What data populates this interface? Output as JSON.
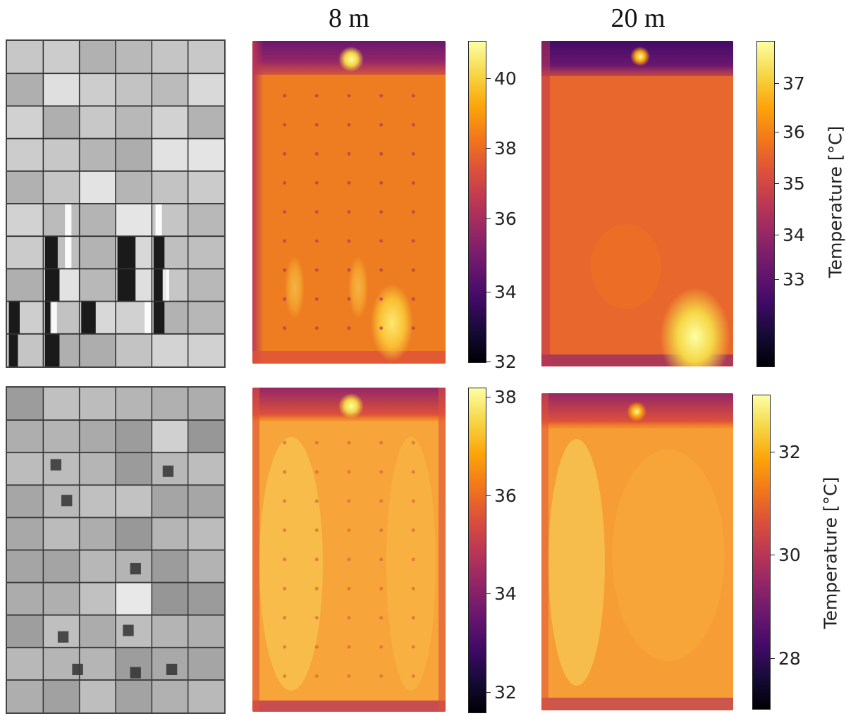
{
  "column_titles": [
    "8 m",
    "20 m"
  ],
  "colorbar_label": "Temperature [°C]",
  "colormap": "inferno",
  "rows": [
    {
      "name": "top",
      "colorbars": [
        {
          "ticks": [
            "40",
            "38",
            "36",
            "34",
            "32"
          ]
        },
        {
          "ticks": [
            "37",
            "36",
            "35",
            "34",
            "33"
          ],
          "label": "Temperature [°C]"
        }
      ]
    },
    {
      "name": "bottom",
      "colorbars": [
        {
          "ticks": [
            "38",
            "36",
            "34",
            "32"
          ]
        },
        {
          "ticks": [
            "32",
            "30",
            "28"
          ],
          "label": "Temperature [°C]"
        }
      ]
    }
  ]
}
